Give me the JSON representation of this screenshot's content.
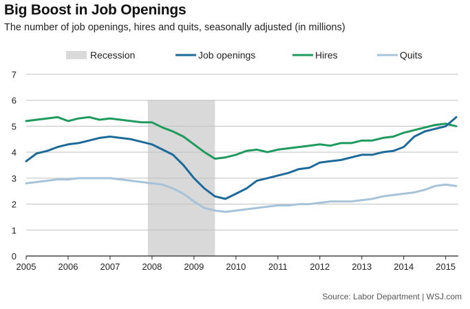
{
  "header": {
    "title": "Big Boost in Job Openings",
    "subtitle": "The number of job openings, hires and quits, seasonally adjusted (in millions)"
  },
  "footer": {
    "source": "Source: Labor Department  |  WSJ.com"
  },
  "chart_data": {
    "type": "line",
    "title": "Big Boost in Job Openings",
    "subtitle": "The number of job openings, hires and quits, seasonally adjusted (in millions)",
    "xlabel": "",
    "ylabel": "",
    "xlim": [
      2005.0,
      2015.3
    ],
    "ylim": [
      0,
      7
    ],
    "grid": true,
    "legend_position": "top",
    "x_ticks": [
      2005,
      2006,
      2007,
      2008,
      2009,
      2010,
      2011,
      2012,
      2013,
      2014,
      2015
    ],
    "y_ticks": [
      0,
      1,
      2,
      3,
      4,
      5,
      6,
      7
    ],
    "recession": {
      "name": "Recession",
      "start": 2007.9,
      "end": 2009.5,
      "color": "#d9d9d9"
    },
    "series": [
      {
        "name": "Job openings",
        "color": "#1d6a9a",
        "x": [
          2005.0,
          2005.25,
          2005.5,
          2005.75,
          2006.0,
          2006.25,
          2006.5,
          2006.75,
          2007.0,
          2007.25,
          2007.5,
          2007.75,
          2008.0,
          2008.25,
          2008.5,
          2008.75,
          2009.0,
          2009.25,
          2009.5,
          2009.75,
          2010.0,
          2010.25,
          2010.5,
          2010.75,
          2011.0,
          2011.25,
          2011.5,
          2011.75,
          2012.0,
          2012.25,
          2012.5,
          2012.75,
          2013.0,
          2013.25,
          2013.5,
          2013.75,
          2014.0,
          2014.25,
          2014.5,
          2014.75,
          2015.0,
          2015.25
        ],
        "values": [
          3.65,
          3.95,
          4.05,
          4.2,
          4.3,
          4.35,
          4.45,
          4.55,
          4.6,
          4.55,
          4.5,
          4.4,
          4.3,
          4.1,
          3.9,
          3.5,
          3.0,
          2.6,
          2.3,
          2.2,
          2.4,
          2.6,
          2.9,
          3.0,
          3.1,
          3.2,
          3.35,
          3.4,
          3.6,
          3.65,
          3.7,
          3.8,
          3.9,
          3.9,
          4.0,
          4.05,
          4.2,
          4.6,
          4.8,
          4.9,
          5.0,
          5.35
        ]
      },
      {
        "name": "Hires",
        "color": "#1f9a5e",
        "x": [
          2005.0,
          2005.25,
          2005.5,
          2005.75,
          2006.0,
          2006.25,
          2006.5,
          2006.75,
          2007.0,
          2007.25,
          2007.5,
          2007.75,
          2008.0,
          2008.25,
          2008.5,
          2008.75,
          2009.0,
          2009.25,
          2009.5,
          2009.75,
          2010.0,
          2010.25,
          2010.5,
          2010.75,
          2011.0,
          2011.25,
          2011.5,
          2011.75,
          2012.0,
          2012.25,
          2012.5,
          2012.75,
          2013.0,
          2013.25,
          2013.5,
          2013.75,
          2014.0,
          2014.25,
          2014.5,
          2014.75,
          2015.0,
          2015.25
        ],
        "values": [
          5.2,
          5.25,
          5.3,
          5.35,
          5.2,
          5.3,
          5.35,
          5.25,
          5.3,
          5.25,
          5.2,
          5.15,
          5.15,
          4.95,
          4.8,
          4.6,
          4.3,
          4.0,
          3.75,
          3.8,
          3.9,
          4.05,
          4.1,
          4.0,
          4.1,
          4.15,
          4.2,
          4.25,
          4.3,
          4.25,
          4.35,
          4.35,
          4.45,
          4.45,
          4.55,
          4.6,
          4.75,
          4.85,
          4.95,
          5.05,
          5.1,
          5.0
        ]
      },
      {
        "name": "Quits",
        "color": "#a6c3d9",
        "x": [
          2005.0,
          2005.25,
          2005.5,
          2005.75,
          2006.0,
          2006.25,
          2006.5,
          2006.75,
          2007.0,
          2007.25,
          2007.5,
          2007.75,
          2008.0,
          2008.25,
          2008.5,
          2008.75,
          2009.0,
          2009.25,
          2009.5,
          2009.75,
          2010.0,
          2010.25,
          2010.5,
          2010.75,
          2011.0,
          2011.25,
          2011.5,
          2011.75,
          2012.0,
          2012.25,
          2012.5,
          2012.75,
          2013.0,
          2013.25,
          2013.5,
          2013.75,
          2014.0,
          2014.25,
          2014.5,
          2014.75,
          2015.0,
          2015.25
        ],
        "values": [
          2.8,
          2.85,
          2.9,
          2.95,
          2.95,
          3.0,
          3.0,
          3.0,
          3.0,
          2.95,
          2.9,
          2.85,
          2.8,
          2.75,
          2.6,
          2.4,
          2.1,
          1.85,
          1.75,
          1.7,
          1.75,
          1.8,
          1.85,
          1.9,
          1.95,
          1.95,
          2.0,
          2.0,
          2.05,
          2.1,
          2.1,
          2.1,
          2.15,
          2.2,
          2.3,
          2.35,
          2.4,
          2.45,
          2.55,
          2.7,
          2.75,
          2.7
        ]
      }
    ]
  }
}
